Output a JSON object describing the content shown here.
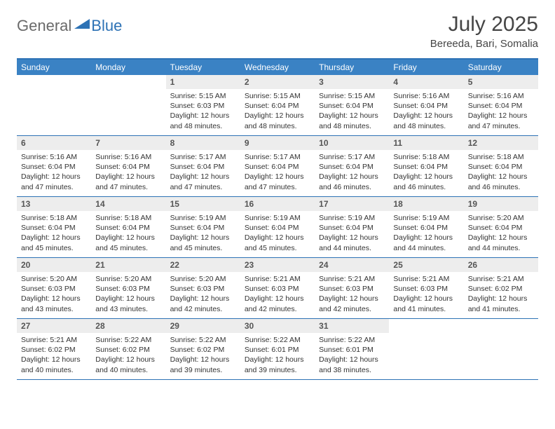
{
  "logo": {
    "text1": "General",
    "text2": "Blue"
  },
  "title": "July 2025",
  "location": "Bereeda, Bari, Somalia",
  "colors": {
    "header_bar": "#3a82c4",
    "border": "#2d72b5",
    "daynum_bg": "#ededed",
    "logo_gray": "#6a6a6a",
    "logo_blue": "#2d72b5"
  },
  "daysOfWeek": [
    "Sunday",
    "Monday",
    "Tuesday",
    "Wednesday",
    "Thursday",
    "Friday",
    "Saturday"
  ],
  "weeks": [
    [
      null,
      null,
      {
        "n": "1",
        "sr": "5:15 AM",
        "ss": "6:03 PM",
        "dl": "12 hours and 48 minutes."
      },
      {
        "n": "2",
        "sr": "5:15 AM",
        "ss": "6:04 PM",
        "dl": "12 hours and 48 minutes."
      },
      {
        "n": "3",
        "sr": "5:15 AM",
        "ss": "6:04 PM",
        "dl": "12 hours and 48 minutes."
      },
      {
        "n": "4",
        "sr": "5:16 AM",
        "ss": "6:04 PM",
        "dl": "12 hours and 48 minutes."
      },
      {
        "n": "5",
        "sr": "5:16 AM",
        "ss": "6:04 PM",
        "dl": "12 hours and 47 minutes."
      }
    ],
    [
      {
        "n": "6",
        "sr": "5:16 AM",
        "ss": "6:04 PM",
        "dl": "12 hours and 47 minutes."
      },
      {
        "n": "7",
        "sr": "5:16 AM",
        "ss": "6:04 PM",
        "dl": "12 hours and 47 minutes."
      },
      {
        "n": "8",
        "sr": "5:17 AM",
        "ss": "6:04 PM",
        "dl": "12 hours and 47 minutes."
      },
      {
        "n": "9",
        "sr": "5:17 AM",
        "ss": "6:04 PM",
        "dl": "12 hours and 47 minutes."
      },
      {
        "n": "10",
        "sr": "5:17 AM",
        "ss": "6:04 PM",
        "dl": "12 hours and 46 minutes."
      },
      {
        "n": "11",
        "sr": "5:18 AM",
        "ss": "6:04 PM",
        "dl": "12 hours and 46 minutes."
      },
      {
        "n": "12",
        "sr": "5:18 AM",
        "ss": "6:04 PM",
        "dl": "12 hours and 46 minutes."
      }
    ],
    [
      {
        "n": "13",
        "sr": "5:18 AM",
        "ss": "6:04 PM",
        "dl": "12 hours and 45 minutes."
      },
      {
        "n": "14",
        "sr": "5:18 AM",
        "ss": "6:04 PM",
        "dl": "12 hours and 45 minutes."
      },
      {
        "n": "15",
        "sr": "5:19 AM",
        "ss": "6:04 PM",
        "dl": "12 hours and 45 minutes."
      },
      {
        "n": "16",
        "sr": "5:19 AM",
        "ss": "6:04 PM",
        "dl": "12 hours and 45 minutes."
      },
      {
        "n": "17",
        "sr": "5:19 AM",
        "ss": "6:04 PM",
        "dl": "12 hours and 44 minutes."
      },
      {
        "n": "18",
        "sr": "5:19 AM",
        "ss": "6:04 PM",
        "dl": "12 hours and 44 minutes."
      },
      {
        "n": "19",
        "sr": "5:20 AM",
        "ss": "6:04 PM",
        "dl": "12 hours and 44 minutes."
      }
    ],
    [
      {
        "n": "20",
        "sr": "5:20 AM",
        "ss": "6:03 PM",
        "dl": "12 hours and 43 minutes."
      },
      {
        "n": "21",
        "sr": "5:20 AM",
        "ss": "6:03 PM",
        "dl": "12 hours and 43 minutes."
      },
      {
        "n": "22",
        "sr": "5:20 AM",
        "ss": "6:03 PM",
        "dl": "12 hours and 42 minutes."
      },
      {
        "n": "23",
        "sr": "5:21 AM",
        "ss": "6:03 PM",
        "dl": "12 hours and 42 minutes."
      },
      {
        "n": "24",
        "sr": "5:21 AM",
        "ss": "6:03 PM",
        "dl": "12 hours and 42 minutes."
      },
      {
        "n": "25",
        "sr": "5:21 AM",
        "ss": "6:03 PM",
        "dl": "12 hours and 41 minutes."
      },
      {
        "n": "26",
        "sr": "5:21 AM",
        "ss": "6:02 PM",
        "dl": "12 hours and 41 minutes."
      }
    ],
    [
      {
        "n": "27",
        "sr": "5:21 AM",
        "ss": "6:02 PM",
        "dl": "12 hours and 40 minutes."
      },
      {
        "n": "28",
        "sr": "5:22 AM",
        "ss": "6:02 PM",
        "dl": "12 hours and 40 minutes."
      },
      {
        "n": "29",
        "sr": "5:22 AM",
        "ss": "6:02 PM",
        "dl": "12 hours and 39 minutes."
      },
      {
        "n": "30",
        "sr": "5:22 AM",
        "ss": "6:01 PM",
        "dl": "12 hours and 39 minutes."
      },
      {
        "n": "31",
        "sr": "5:22 AM",
        "ss": "6:01 PM",
        "dl": "12 hours and 38 minutes."
      },
      null,
      null
    ]
  ],
  "labels": {
    "sunrise": "Sunrise:",
    "sunset": "Sunset:",
    "daylight": "Daylight:"
  }
}
